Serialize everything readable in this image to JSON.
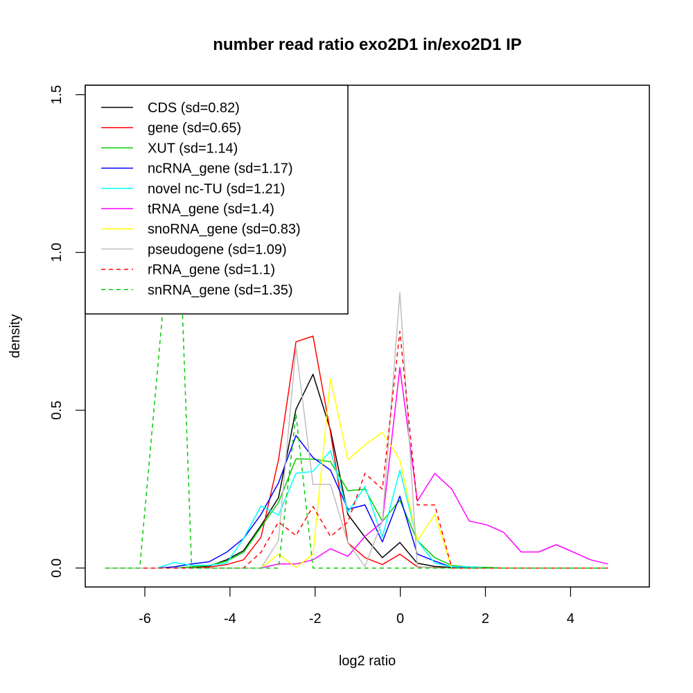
{
  "chart_data": {
    "type": "line",
    "title": "number read ratio exo2D1 in/exo2D1 IP",
    "xlabel": "log2 ratio",
    "ylabel": "density",
    "xlim": [
      -7.4,
      5.85
    ],
    "ylim": [
      -0.06,
      1.53
    ],
    "xticks": [
      -6,
      -4,
      -2,
      0,
      2,
      4
    ],
    "xtick_labels": [
      "-6",
      "-4",
      "-2",
      "0",
      "2",
      "4"
    ],
    "yticks": [
      0.0,
      0.5,
      1.0,
      1.5
    ],
    "ytick_labels": [
      "0.0",
      "0.5",
      "1.0",
      "1.5"
    ],
    "grid": false,
    "legend_position": "top-left",
    "x": [
      -6.93,
      -6.52,
      -6.12,
      -5.71,
      -5.3,
      -4.9,
      -4.49,
      -4.08,
      -3.68,
      -3.27,
      -2.86,
      -2.45,
      -2.05,
      -1.64,
      -1.23,
      -0.83,
      -0.42,
      -0.01,
      0.4,
      0.81,
      1.21,
      1.62,
      2.03,
      2.43,
      2.84,
      3.25,
      3.66,
      4.06,
      4.47,
      4.88
    ],
    "series": [
      {
        "name": "CDS (sd=0.82)",
        "color": "#000000",
        "dash": false,
        "values": [
          0,
          0,
          0,
          0,
          0,
          0.003,
          0.006,
          0.026,
          0.055,
          0.135,
          0.223,
          0.503,
          0.614,
          0.437,
          0.17,
          0.098,
          0.033,
          0.081,
          0.015,
          0.005,
          0.002,
          0,
          0,
          0,
          0,
          0,
          0,
          0,
          0,
          0
        ]
      },
      {
        "name": "gene (sd=0.65)",
        "color": "#ff0000",
        "dash": false,
        "values": [
          0,
          0,
          0,
          0,
          0,
          0,
          0.003,
          0.011,
          0.026,
          0.098,
          0.343,
          0.717,
          0.735,
          0.43,
          0.08,
          0.033,
          0.011,
          0.044,
          0.004,
          0.001,
          0,
          0,
          0,
          0,
          0,
          0,
          0,
          0,
          0,
          0
        ]
      },
      {
        "name": "XUT (sd=1.14)",
        "color": "#00cd00",
        "dash": false,
        "values": [
          0,
          0,
          0,
          0,
          0,
          0.004,
          0.008,
          0.022,
          0.05,
          0.13,
          0.208,
          0.346,
          0.345,
          0.337,
          0.245,
          0.25,
          0.148,
          0.215,
          0.087,
          0.033,
          0.008,
          0.003,
          0.002,
          0,
          0,
          0,
          0,
          0,
          0,
          0
        ]
      },
      {
        "name": "ncRNA_gene (sd=1.17)",
        "color": "#0000ff",
        "dash": false,
        "values": [
          0,
          0,
          0,
          0,
          0.004,
          0.013,
          0.02,
          0.05,
          0.094,
          0.17,
          0.27,
          0.42,
          0.35,
          0.31,
          0.186,
          0.2,
          0.083,
          0.228,
          0.044,
          0.022,
          0.003,
          0,
          0,
          0,
          0,
          0,
          0,
          0,
          0,
          0
        ]
      },
      {
        "name": "novel nc-TU (sd=1.21)",
        "color": "#00ffff",
        "dash": false,
        "values": [
          0,
          0,
          0,
          0,
          0.018,
          0.009,
          0.009,
          0.015,
          0.094,
          0.197,
          0.168,
          0.3,
          0.306,
          0.372,
          0.177,
          0.258,
          0.098,
          0.31,
          0.087,
          0.015,
          0.004,
          0.004,
          0,
          0,
          0,
          0,
          0,
          0,
          0,
          0
        ]
      },
      {
        "name": "tRNA_gene (sd=1.4)",
        "color": "#ff00ff",
        "dash": false,
        "values": [
          0,
          0,
          0,
          0,
          0,
          0,
          0,
          0,
          0,
          0,
          0.013,
          0.013,
          0.026,
          0.061,
          0.037,
          0.1,
          0.146,
          0.636,
          0.212,
          0.3,
          0.25,
          0.149,
          0.137,
          0.113,
          0.051,
          0.051,
          0.074,
          0.051,
          0.026,
          0.013
        ]
      },
      {
        "name": "snoRNA_gene (sd=0.83)",
        "color": "#ffff00",
        "dash": false,
        "values": [
          0,
          0,
          0,
          0,
          0,
          0,
          0,
          0,
          0,
          0,
          0.044,
          0.002,
          0.044,
          0.6,
          0.343,
          0.39,
          0.43,
          0.343,
          0.087,
          0.17,
          0,
          0,
          0,
          0,
          0,
          0,
          0,
          0,
          0,
          0
        ]
      },
      {
        "name": "pseudogene (sd=1.09)",
        "color": "#bebebe",
        "dash": false,
        "values": [
          0,
          0,
          0,
          0,
          0,
          0,
          0,
          0,
          0,
          0,
          0.087,
          0.7,
          0.265,
          0.265,
          0.08,
          0.005,
          0.15,
          0.873,
          0.005,
          0,
          0,
          0,
          0,
          0,
          0,
          0,
          0,
          0,
          0,
          0
        ]
      },
      {
        "name": "rRNA_gene (sd=1.1)",
        "color": "#ff0000",
        "dash": true,
        "values": [
          0,
          0,
          0,
          0,
          0,
          0,
          0,
          0,
          0,
          0.05,
          0.146,
          0.103,
          0.195,
          0.1,
          0.146,
          0.3,
          0.25,
          0.75,
          0.2,
          0.2,
          0,
          0,
          0,
          0,
          0,
          0,
          0,
          0,
          0,
          0
        ]
      },
      {
        "name": "snRNA_gene (sd=1.35)",
        "color": "#00cd00",
        "dash": true,
        "points": [
          [
            -6.93,
            0
          ],
          [
            -6.12,
            0
          ],
          [
            -5.25,
            1.31
          ],
          [
            -4.9,
            0
          ],
          [
            -2.86,
            0
          ],
          [
            -2.45,
            0.488
          ],
          [
            -2.05,
            0
          ],
          [
            4.88,
            0
          ]
        ]
      }
    ]
  }
}
